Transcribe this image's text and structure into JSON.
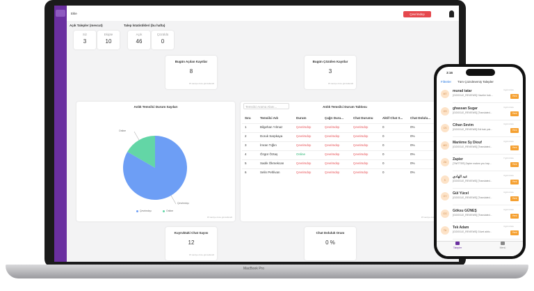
{
  "topbar": {
    "add": "Ekle",
    "status": "Çevrimdışı"
  },
  "open_tickets": {
    "title": "Açık Talepler (mevcut)",
    "stats": [
      {
        "label": "Siz",
        "value": 3
      },
      {
        "label": "Ekipte",
        "value": 10
      }
    ]
  },
  "ticket_stats": {
    "title": "Talep İstatistikleri (bu hafta)",
    "stats": [
      {
        "label": "Açık",
        "value": 46
      },
      {
        "label": "Çözüldü",
        "value": 0
      }
    ]
  },
  "today_opened": {
    "title": "Bugün Açılan Kayıtlar",
    "value": 8,
    "note": "15 saniye önce güncellendi"
  },
  "today_solved": {
    "title": "Bugün Çözülen Kayıtlar",
    "value": 3,
    "note": "15 saniye önce güncellendi"
  },
  "chart_data": {
    "type": "pie",
    "title": "Anlık Temsilci Durum Sayıları",
    "categories": [
      "Çevrimdışı",
      "Online"
    ],
    "values": [
      5,
      1
    ],
    "colors": [
      "#6d9ef5",
      "#63d6a6"
    ],
    "note": "15 saniye önce güncellendi"
  },
  "agent_table": {
    "title": "Anlık Temsilci Durum Tablosu",
    "search": "Temsilci Arama Alanı...",
    "columns": [
      "Sıra",
      "Temsilci Adı",
      "Durum",
      "Çağrı Duru...",
      "Chat Durumu",
      "Aktif Chat S...",
      "Chat Dolulu..."
    ],
    "rows": [
      [
        1,
        "Bilgehan Yılmaz",
        "Çevrimdışı",
        "Çevrimdışı",
        "Çevrimdışı",
        0,
        "0%"
      ],
      [
        2,
        "Doruk Sarpkaya",
        "Çevrimdışı",
        "Çevrimdışı",
        "Çevrimdışı",
        0,
        "0%"
      ],
      [
        3,
        "İmran Tığlın",
        "Çevrimdışı",
        "Çevrimdışı",
        "Çevrimdışı",
        0,
        "0%"
      ],
      [
        4,
        "Özgür Öztaş",
        "Online",
        "Çevrimdışı",
        "Çevrimdışı",
        0,
        "0%"
      ],
      [
        5,
        "Sadık Ökmekcan",
        "Çevrimdışı",
        "Çevrimdışı",
        "Çevrimdışı",
        0,
        "0%"
      ],
      [
        6,
        "Selin Pehlivan",
        "Çevrimdışı",
        "Çevrimdışı",
        "Çevrimdışı",
        0,
        "0%"
      ]
    ],
    "note": "15 saniye önce güncellendi"
  },
  "queue": {
    "title": "Kuyruktaki Chat Sayısı",
    "value": 12,
    "note": "15 saniye önce güncellendi"
  },
  "occupancy": {
    "title": "Chat Doluluk Oranı",
    "value": "0 %"
  },
  "device": "MacBook Pro",
  "phone": {
    "time": "3:16",
    "filter": "Filtreler",
    "title": "Tüm Çözülmemiş Talepler",
    "items": [
      {
        "initials": "MT",
        "name": "murad tatar",
        "preview": "[GOOGLE_REVIEWS] Haveler bak...",
        "time": "4 gün önce",
        "badge": "Yeni"
      },
      {
        "initials": "GS",
        "name": "ghassan Sugar",
        "preview": "[GOOGLE_REVIEWS] [Translated...",
        "time": "4 gün önce",
        "badge": "Yeni"
      },
      {
        "initials": "CS",
        "name": "Cihan Sevim",
        "preview": "[GOOGLE_REVIEWS] Edi bak yok...",
        "time": "4 gün önce",
        "badge": "Yeni"
      },
      {
        "initials": "MS",
        "name": "Marième Sy Diouf",
        "preview": "[GOOGLE_REVIEWS] [Translated...",
        "time": "4 gün önce",
        "badge": "Yeni"
      },
      {
        "initials": "ZA",
        "name": "Zapier",
        "preview": "[TWITTER] Zapier makes you hap...",
        "time": "7 gün önce",
        "badge": "Yeni"
      },
      {
        "initials": "ع",
        "name": "عبد الهادي",
        "preview": "[GOOGLE_REVIEWS] [Translated...",
        "time": "4 gün önce",
        "badge": "Yeni"
      },
      {
        "initials": "GY",
        "name": "Gül Yücel",
        "preview": "[GOOGLE_REVIEWS] [Translated...",
        "time": "4 gün önce",
        "badge": "Yeni"
      },
      {
        "initials": "GG",
        "name": "Göksu GÜNEŞ",
        "preview": "[GOOGLE_REVIEWS] [Translated...",
        "time": "4 gün önce",
        "badge": "Yeni"
      },
      {
        "initials": "TA",
        "name": "Tek Adam",
        "preview": "[GOOGLE_REVIEWS] Güzel aktiv...",
        "time": "4 gün önce",
        "badge": "Yeni"
      }
    ],
    "tabs": [
      "Talepler",
      "Menü"
    ]
  }
}
